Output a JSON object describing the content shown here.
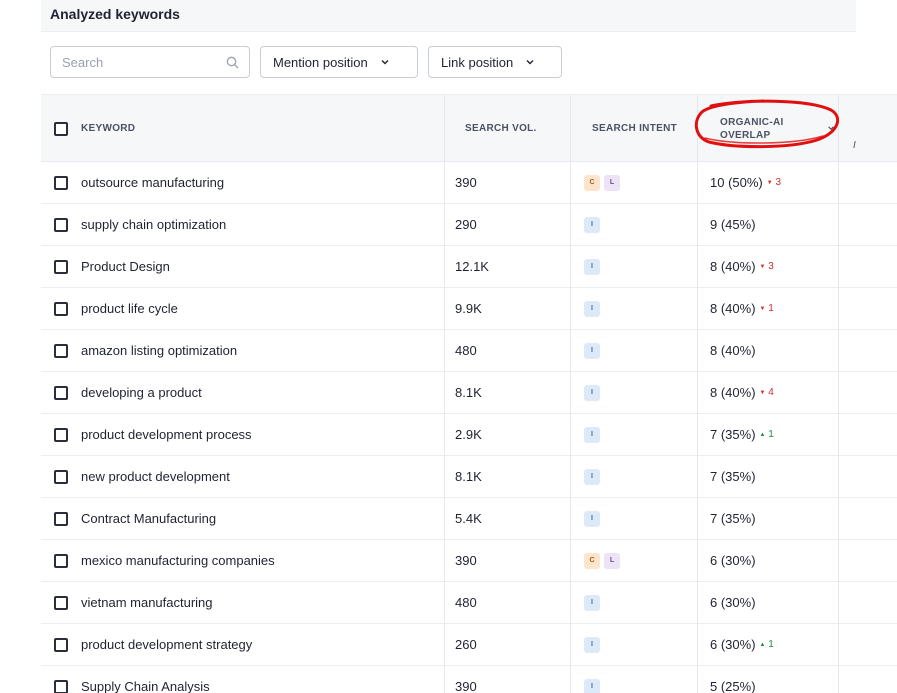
{
  "header": {
    "title": "Analyzed keywords"
  },
  "filters": {
    "search_placeholder": "Search",
    "mention_position_label": "Mention position",
    "link_position_label": "Link position"
  },
  "table": {
    "columns": {
      "keyword": "KEYWORD",
      "search_vol": "SEARCH VOL.",
      "search_intent": "SEARCH INTENT",
      "overlap_line1": "ORGANIC-AI",
      "overlap_line2": "OVERLAP"
    },
    "rows": [
      {
        "keyword": "outsource manufacturing",
        "volume": "390",
        "intents": [
          "C",
          "L"
        ],
        "overlap": "10 (50%)",
        "delta": "3",
        "delta_dir": "down"
      },
      {
        "keyword": "supply chain optimization",
        "volume": "290",
        "intents": [
          "I"
        ],
        "overlap": "9 (45%)",
        "delta": "",
        "delta_dir": ""
      },
      {
        "keyword": "Product Design",
        "volume": "12.1K",
        "intents": [
          "I"
        ],
        "overlap": "8 (40%)",
        "delta": "3",
        "delta_dir": "down"
      },
      {
        "keyword": "product life cycle",
        "volume": "9.9K",
        "intents": [
          "I"
        ],
        "overlap": "8 (40%)",
        "delta": "1",
        "delta_dir": "down"
      },
      {
        "keyword": "amazon listing optimization",
        "volume": "480",
        "intents": [
          "I"
        ],
        "overlap": "8 (40%)",
        "delta": "",
        "delta_dir": ""
      },
      {
        "keyword": "developing a product",
        "volume": "8.1K",
        "intents": [
          "I"
        ],
        "overlap": "8 (40%)",
        "delta": "4",
        "delta_dir": "down"
      },
      {
        "keyword": "product development process",
        "volume": "2.9K",
        "intents": [
          "I"
        ],
        "overlap": "7 (35%)",
        "delta": "1",
        "delta_dir": "up"
      },
      {
        "keyword": "new product development",
        "volume": "8.1K",
        "intents": [
          "I"
        ],
        "overlap": "7 (35%)",
        "delta": "",
        "delta_dir": ""
      },
      {
        "keyword": "Contract Manufacturing",
        "volume": "5.4K",
        "intents": [
          "I"
        ],
        "overlap": "7 (35%)",
        "delta": "",
        "delta_dir": ""
      },
      {
        "keyword": "mexico manufacturing companies",
        "volume": "390",
        "intents": [
          "C",
          "L"
        ],
        "overlap": "6 (30%)",
        "delta": "",
        "delta_dir": ""
      },
      {
        "keyword": "vietnam manufacturing",
        "volume": "480",
        "intents": [
          "I"
        ],
        "overlap": "6 (30%)",
        "delta": "",
        "delta_dir": ""
      },
      {
        "keyword": "product development strategy",
        "volume": "260",
        "intents": [
          "I"
        ],
        "overlap": "6 (30%)",
        "delta": "1",
        "delta_dir": "up"
      },
      {
        "keyword": "Supply Chain Analysis",
        "volume": "390",
        "intents": [
          "I"
        ],
        "overlap": "5 (25%)",
        "delta": "",
        "delta_dir": ""
      }
    ]
  },
  "colors": {
    "header_bg": "#f6f7f9",
    "delta_down": "#d72b2b",
    "delta_up": "#1e8a4e",
    "annotation_circle": "#e01010"
  },
  "edge_mark": "I"
}
